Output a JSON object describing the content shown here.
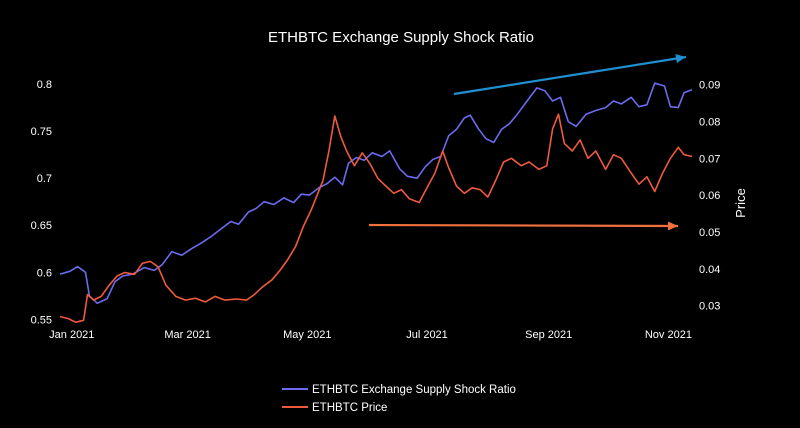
{
  "chart_data": {
    "type": "line",
    "title": "ETHBTC Exchange Supply Shock Ratio",
    "xlabel": "",
    "ylabel_left": "",
    "ylabel_right": "Price",
    "x_range": [
      "2020-12-26",
      "2021-11-13"
    ],
    "x_ticks": [
      {
        "date": "2021-01-01",
        "label": "Jan 2021"
      },
      {
        "date": "2021-03-01",
        "label": "Mar 2021"
      },
      {
        "date": "2021-05-01",
        "label": "May 2021"
      },
      {
        "date": "2021-07-01",
        "label": "Jul 2021"
      },
      {
        "date": "2021-09-01",
        "label": "Sep 2021"
      },
      {
        "date": "2021-11-01",
        "label": "Nov 2021"
      }
    ],
    "y_left": {
      "range": [
        0.545,
        0.815
      ],
      "ticks": [
        0.55,
        0.6,
        0.65,
        0.7,
        0.75,
        0.8
      ],
      "tick_labels": [
        "0.55",
        "0.6",
        "0.65",
        "0.7",
        "0.75",
        "0.8"
      ]
    },
    "y_right": {
      "range": [
        0.025,
        0.094
      ],
      "ticks": [
        0.03,
        0.04,
        0.05,
        0.06,
        0.07,
        0.08,
        0.09
      ],
      "tick_labels": [
        "0.03",
        "0.04",
        "0.05",
        "0.06",
        "0.07",
        "0.08",
        "0.09"
      ]
    },
    "grid": false,
    "legend_position": "bottom-center",
    "colors": {
      "background": "#000000",
      "text": "#ffffff",
      "ratio": "#6b6bef",
      "price": "#ef5a3e",
      "arrow_up": "#1f8fd1",
      "arrow_flat": "#f0703e"
    },
    "series": [
      {
        "name": "ETHBTC Exchange Supply Shock Ratio",
        "axis": "left",
        "points": [
          [
            "2020-12-26",
            0.598
          ],
          [
            "2020-12-31",
            0.601
          ],
          [
            "2021-01-04",
            0.606
          ],
          [
            "2021-01-08",
            0.6
          ],
          [
            "2021-01-10",
            0.575
          ],
          [
            "2021-01-14",
            0.567
          ],
          [
            "2021-01-19",
            0.572
          ],
          [
            "2021-01-23",
            0.59
          ],
          [
            "2021-01-27",
            0.596
          ],
          [
            "2021-02-01",
            0.598
          ],
          [
            "2021-02-07",
            0.605
          ],
          [
            "2021-02-12",
            0.602
          ],
          [
            "2021-02-16",
            0.608
          ],
          [
            "2021-02-21",
            0.622
          ],
          [
            "2021-02-26",
            0.618
          ],
          [
            "2021-03-03",
            0.625
          ],
          [
            "2021-03-08",
            0.631
          ],
          [
            "2021-03-13",
            0.638
          ],
          [
            "2021-03-18",
            0.646
          ],
          [
            "2021-03-23",
            0.654
          ],
          [
            "2021-03-27",
            0.651
          ],
          [
            "2021-04-01",
            0.664
          ],
          [
            "2021-04-05",
            0.668
          ],
          [
            "2021-04-09",
            0.675
          ],
          [
            "2021-04-14",
            0.672
          ],
          [
            "2021-04-19",
            0.679
          ],
          [
            "2021-04-24",
            0.674
          ],
          [
            "2021-04-28",
            0.683
          ],
          [
            "2021-05-02",
            0.682
          ],
          [
            "2021-05-07",
            0.69
          ],
          [
            "2021-05-11",
            0.694
          ],
          [
            "2021-05-15",
            0.701
          ],
          [
            "2021-05-19",
            0.693
          ],
          [
            "2021-05-22",
            0.716
          ],
          [
            "2021-05-26",
            0.722
          ],
          [
            "2021-05-30",
            0.719
          ],
          [
            "2021-06-03",
            0.727
          ],
          [
            "2021-06-08",
            0.723
          ],
          [
            "2021-06-12",
            0.729
          ],
          [
            "2021-06-17",
            0.71
          ],
          [
            "2021-06-21",
            0.702
          ],
          [
            "2021-06-26",
            0.7
          ],
          [
            "2021-06-30",
            0.712
          ],
          [
            "2021-07-04",
            0.72
          ],
          [
            "2021-07-08",
            0.723
          ],
          [
            "2021-07-12",
            0.745
          ],
          [
            "2021-07-16",
            0.752
          ],
          [
            "2021-07-20",
            0.764
          ],
          [
            "2021-07-23",
            0.767
          ],
          [
            "2021-07-27",
            0.753
          ],
          [
            "2021-07-31",
            0.742
          ],
          [
            "2021-08-04",
            0.738
          ],
          [
            "2021-08-08",
            0.752
          ],
          [
            "2021-08-12",
            0.758
          ],
          [
            "2021-08-16",
            0.768
          ],
          [
            "2021-08-21",
            0.782
          ],
          [
            "2021-08-26",
            0.796
          ],
          [
            "2021-08-30",
            0.793
          ],
          [
            "2021-09-03",
            0.782
          ],
          [
            "2021-09-07",
            0.786
          ],
          [
            "2021-09-11",
            0.76
          ],
          [
            "2021-09-15",
            0.755
          ],
          [
            "2021-09-20",
            0.768
          ],
          [
            "2021-09-25",
            0.772
          ],
          [
            "2021-09-30",
            0.775
          ],
          [
            "2021-10-04",
            0.782
          ],
          [
            "2021-10-08",
            0.779
          ],
          [
            "2021-10-13",
            0.786
          ],
          [
            "2021-10-17",
            0.776
          ],
          [
            "2021-10-21",
            0.778
          ],
          [
            "2021-10-25",
            0.801
          ],
          [
            "2021-10-30",
            0.798
          ],
          [
            "2021-11-02",
            0.776
          ],
          [
            "2021-11-06",
            0.775
          ],
          [
            "2021-11-09",
            0.791
          ],
          [
            "2021-11-13",
            0.794
          ]
        ]
      },
      {
        "name": "ETHBTC Price",
        "axis": "right",
        "points": [
          [
            "2020-12-26",
            0.027
          ],
          [
            "2020-12-30",
            0.0265
          ],
          [
            "2021-01-03",
            0.0255
          ],
          [
            "2021-01-07",
            0.026
          ],
          [
            "2021-01-09",
            0.033
          ],
          [
            "2021-01-12",
            0.0315
          ],
          [
            "2021-01-16",
            0.0325
          ],
          [
            "2021-01-20",
            0.0355
          ],
          [
            "2021-01-24",
            0.038
          ],
          [
            "2021-01-28",
            0.039
          ],
          [
            "2021-02-02",
            0.0385
          ],
          [
            "2021-02-06",
            0.0415
          ],
          [
            "2021-02-10",
            0.042
          ],
          [
            "2021-02-14",
            0.0405
          ],
          [
            "2021-02-18",
            0.0355
          ],
          [
            "2021-02-23",
            0.0325
          ],
          [
            "2021-02-28",
            0.0315
          ],
          [
            "2021-03-05",
            0.032
          ],
          [
            "2021-03-10",
            0.031
          ],
          [
            "2021-03-15",
            0.0325
          ],
          [
            "2021-03-20",
            0.0315
          ],
          [
            "2021-03-26",
            0.0318
          ],
          [
            "2021-03-31",
            0.0315
          ],
          [
            "2021-04-04",
            0.033
          ],
          [
            "2021-04-08",
            0.035
          ],
          [
            "2021-04-13",
            0.037
          ],
          [
            "2021-04-17",
            0.0395
          ],
          [
            "2021-04-21",
            0.0425
          ],
          [
            "2021-04-25",
            0.046
          ],
          [
            "2021-04-29",
            0.0515
          ],
          [
            "2021-05-03",
            0.056
          ],
          [
            "2021-05-06",
            0.06
          ],
          [
            "2021-05-09",
            0.064
          ],
          [
            "2021-05-12",
            0.072
          ],
          [
            "2021-05-15",
            0.0815
          ],
          [
            "2021-05-18",
            0.076
          ],
          [
            "2021-05-21",
            0.072
          ],
          [
            "2021-05-25",
            0.068
          ],
          [
            "2021-05-29",
            0.0715
          ],
          [
            "2021-06-02",
            0.0685
          ],
          [
            "2021-06-06",
            0.0645
          ],
          [
            "2021-06-10",
            0.0625
          ],
          [
            "2021-06-14",
            0.0605
          ],
          [
            "2021-06-18",
            0.0615
          ],
          [
            "2021-06-22",
            0.059
          ],
          [
            "2021-06-27",
            0.058
          ],
          [
            "2021-07-01",
            0.062
          ],
          [
            "2021-07-05",
            0.066
          ],
          [
            "2021-07-09",
            0.072
          ],
          [
            "2021-07-12",
            0.0675
          ],
          [
            "2021-07-16",
            0.0625
          ],
          [
            "2021-07-20",
            0.0605
          ],
          [
            "2021-07-24",
            0.062
          ],
          [
            "2021-07-28",
            0.0615
          ],
          [
            "2021-08-01",
            0.0595
          ],
          [
            "2021-08-05",
            0.064
          ],
          [
            "2021-08-09",
            0.069
          ],
          [
            "2021-08-13",
            0.07
          ],
          [
            "2021-08-18",
            0.068
          ],
          [
            "2021-08-22",
            0.069
          ],
          [
            "2021-08-27",
            0.067
          ],
          [
            "2021-08-31",
            0.068
          ],
          [
            "2021-09-03",
            0.078
          ],
          [
            "2021-09-06",
            0.082
          ],
          [
            "2021-09-09",
            0.074
          ],
          [
            "2021-09-13",
            0.072
          ],
          [
            "2021-09-17",
            0.075
          ],
          [
            "2021-09-21",
            0.07
          ],
          [
            "2021-09-25",
            0.072
          ],
          [
            "2021-09-30",
            0.067
          ],
          [
            "2021-10-04",
            0.071
          ],
          [
            "2021-10-08",
            0.07
          ],
          [
            "2021-10-13",
            0.066
          ],
          [
            "2021-10-17",
            0.063
          ],
          [
            "2021-10-21",
            0.065
          ],
          [
            "2021-10-25",
            0.061
          ],
          [
            "2021-10-29",
            0.066
          ],
          [
            "2021-11-02",
            0.07
          ],
          [
            "2021-11-06",
            0.073
          ],
          [
            "2021-11-09",
            0.071
          ],
          [
            "2021-11-13",
            0.0705
          ]
        ]
      }
    ]
  }
}
